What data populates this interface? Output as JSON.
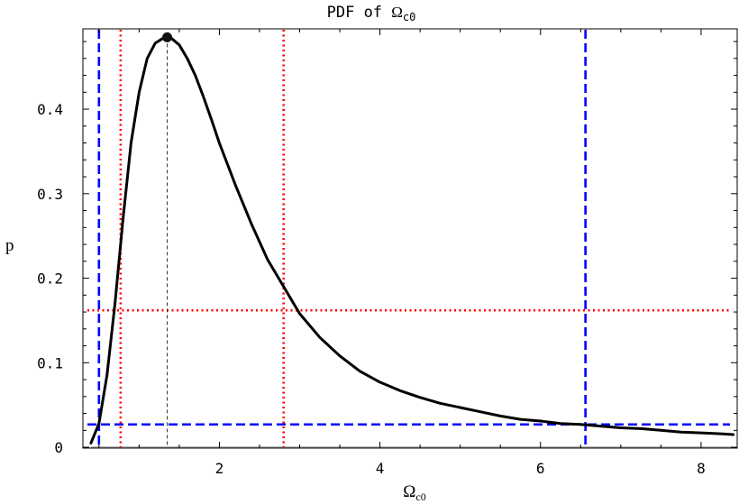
{
  "chart_data": {
    "type": "line",
    "title": {
      "prefix": "PDF of ",
      "symbol": "Ω",
      "subscript": "c0"
    },
    "xlabel": {
      "symbol": "Ω",
      "subscript": "c0"
    },
    "ylabel": "p",
    "xlim": [
      0.3,
      8.45
    ],
    "ylim": [
      -0.001,
      0.495
    ],
    "xticks": [
      2,
      4,
      6,
      8
    ],
    "yticks": [
      0,
      0.1,
      0.2,
      0.3,
      0.4
    ],
    "ytick_labels": [
      "0",
      "0.1",
      "0.2",
      "0.3",
      "0.4"
    ],
    "grid": false,
    "legend": "none",
    "series": [
      {
        "color": "#000000",
        "style": "solid",
        "x": [
          0.4,
          0.5,
          0.6,
          0.7,
          0.8,
          0.9,
          1.0,
          1.1,
          1.2,
          1.3,
          1.35,
          1.4,
          1.5,
          1.6,
          1.7,
          1.8,
          1.9,
          2.0,
          2.2,
          2.4,
          2.6,
          2.8,
          3.0,
          3.25,
          3.5,
          3.75,
          4.0,
          4.25,
          4.5,
          4.75,
          5.0,
          5.25,
          5.5,
          5.75,
          6.0,
          6.25,
          6.5,
          6.75,
          7.0,
          7.25,
          7.5,
          7.75,
          8.0,
          8.25,
          8.4
        ],
        "y": [
          0.005,
          0.028,
          0.085,
          0.17,
          0.27,
          0.36,
          0.42,
          0.46,
          0.478,
          0.484,
          0.485,
          0.484,
          0.476,
          0.46,
          0.44,
          0.415,
          0.388,
          0.36,
          0.31,
          0.264,
          0.222,
          0.19,
          0.158,
          0.13,
          0.108,
          0.09,
          0.077,
          0.067,
          0.059,
          0.052,
          0.047,
          0.042,
          0.037,
          0.033,
          0.031,
          0.028,
          0.027,
          0.025,
          0.023,
          0.022,
          0.02,
          0.018,
          0.017,
          0.016,
          0.015
        ]
      }
    ],
    "peak": {
      "x": 1.35,
      "y": 0.485,
      "marker": "filled-circle",
      "dropline_color": "#333333"
    },
    "reference_lines": [
      {
        "orientation": "vertical",
        "x": 0.5,
        "color": "#0000ff",
        "style": "dashed"
      },
      {
        "orientation": "vertical",
        "x": 6.56,
        "color": "#0000ff",
        "style": "dashed"
      },
      {
        "orientation": "horizontal",
        "y": 0.027,
        "color": "#0000ff",
        "style": "dashed"
      },
      {
        "orientation": "vertical",
        "x": 0.77,
        "color": "#ff0000",
        "style": "dotted"
      },
      {
        "orientation": "vertical",
        "x": 2.8,
        "color": "#ff0000",
        "style": "dotted"
      },
      {
        "orientation": "horizontal",
        "y": 0.162,
        "color": "#ff0000",
        "style": "dotted"
      }
    ]
  }
}
